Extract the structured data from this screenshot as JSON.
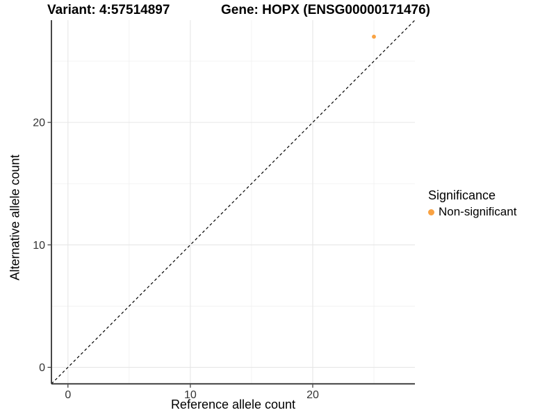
{
  "chart_data": {
    "type": "scatter",
    "title_left": "Variant: 4:57514897",
    "title_right": "Gene: HOPX (ENSG00000171476)",
    "xlabel": "Reference allele count",
    "ylabel": "Alternative allele count",
    "xlim": [
      -1.35,
      28.35
    ],
    "ylim": [
      -1.35,
      28.35
    ],
    "x_ticks": [
      0,
      10,
      20
    ],
    "y_ticks": [
      0,
      10,
      20
    ],
    "x_minor_ticks": [
      5,
      15,
      25
    ],
    "y_minor_ticks": [
      5,
      15,
      25
    ],
    "grid": "major and minor gridlines on white panel",
    "identity_line": {
      "description": "y = x dashed reference line",
      "from": -1.35,
      "to": 28.35,
      "style": "dashed",
      "color": "#000000"
    },
    "series": [
      {
        "name": "Non-significant",
        "color": "#F9A242",
        "points": [
          {
            "x": 25,
            "y": 27
          }
        ]
      }
    ],
    "legend": {
      "title": "Significance",
      "position": "right",
      "items": [
        {
          "label": "Non-significant",
          "color": "#F9A242"
        }
      ]
    }
  },
  "theme": {
    "grid_major_color": "#E6E6E6",
    "grid_minor_color": "#F0F0F0",
    "axis_line_color": "#333333",
    "tick_text_color": "#333333",
    "title_text_color": "#000000"
  }
}
